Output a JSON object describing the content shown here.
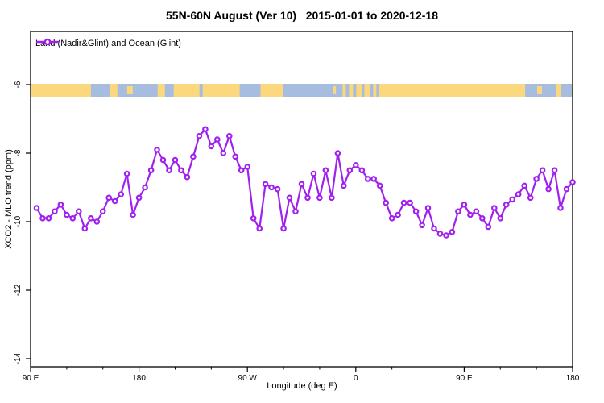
{
  "title": "55N-60N August (Ver 10)   2015-01-01 to 2020-12-18",
  "legend": {
    "label": "Land (Nadir&Glint) and Ocean (Glint)"
  },
  "axes": {
    "x": {
      "label": "Longitude (deg E)",
      "major_ticks": [
        {
          "deg": 0,
          "label": "90 E"
        },
        {
          "deg": 90,
          "label": "180"
        },
        {
          "deg": 180,
          "label": "90 W"
        },
        {
          "deg": 270,
          "label": "0"
        },
        {
          "deg": 360,
          "label": "90 E"
        },
        {
          "deg": 450,
          "label": "180"
        }
      ],
      "minor_ticks_deg": [
        30,
        60,
        120,
        150,
        210,
        240,
        300,
        330,
        390,
        420
      ]
    },
    "y": {
      "label": "XCO2 - MLO trend (ppm)",
      "ticks": [
        -6,
        -8,
        -10,
        -12,
        -14
      ],
      "range": [
        -14.2,
        -4.45
      ]
    }
  },
  "colors": {
    "series": "#A020F0",
    "marker_fill": "#ffffff",
    "land": "#FBD77D",
    "ocean": "#A6BDDF",
    "axis": "#000000",
    "text": "#000000"
  },
  "land_ocean_strip": {
    "description": "land/ocean mask band for 55N-60N plotted under y=-6",
    "ocean_segments_deg": [
      [
        50.1,
        66.1
      ],
      [
        72.1,
        105.5
      ],
      [
        111.5,
        118.8
      ],
      [
        140.2,
        142.9
      ],
      [
        173.6,
        190.9
      ],
      [
        209.6,
        259.0
      ],
      [
        261.7,
        264.4
      ],
      [
        267.7,
        270.4
      ],
      [
        275.1,
        277.1
      ],
      [
        281.8,
        284.4
      ],
      [
        287.1,
        289.1
      ],
      [
        410.6,
        436.6
      ],
      [
        440.6,
        449.3
      ]
    ],
    "land_patches_deg": [
      [
        80.1,
        84.8
      ],
      [
        251.0,
        253.5
      ],
      [
        420.6,
        424.6
      ]
    ]
  },
  "chart_data": {
    "type": "line",
    "title": "55N-60N August (Ver 10)   2015-01-01 to 2020-12-18",
    "xlabel": "Longitude (deg E)",
    "ylabel": "XCO2 - MLO trend (ppm)",
    "x_start_longitude": "90 E",
    "x_span_deg": 450,
    "ylim": [
      -14.2,
      -4.45
    ],
    "grid": false,
    "legend_position": "top-left",
    "series_name": "Land (Nadir&Glint) and Ocean (Glint)",
    "x_deg": [
      5,
      10,
      15,
      20,
      25,
      30,
      35,
      40,
      45,
      50,
      55,
      60,
      65,
      70,
      75,
      80,
      85,
      90,
      95,
      100,
      105,
      110,
      115,
      120,
      125,
      130,
      135,
      140,
      145,
      150,
      155,
      160,
      165,
      170,
      175,
      180,
      185,
      190,
      195,
      200,
      205,
      210,
      215,
      220,
      225,
      230,
      235,
      240,
      245,
      250,
      255,
      260,
      265,
      270,
      275,
      280,
      285,
      290,
      295,
      300,
      305,
      310,
      315,
      320,
      325,
      330,
      335,
      340,
      345,
      350,
      355,
      360,
      365,
      370,
      375,
      380,
      385,
      390,
      395,
      400,
      405,
      410,
      415,
      420,
      425,
      430,
      435,
      440,
      445,
      450
    ],
    "values": [
      -9.6,
      -9.9,
      -9.9,
      -9.7,
      -9.5,
      -9.8,
      -9.9,
      -9.7,
      -10.2,
      -9.9,
      -10.0,
      -9.7,
      -9.3,
      -9.4,
      -9.2,
      -8.6,
      -9.8,
      -9.3,
      -9.0,
      -8.5,
      -7.9,
      -8.2,
      -8.5,
      -8.2,
      -8.5,
      -8.7,
      -8.1,
      -7.5,
      -7.3,
      -7.8,
      -7.6,
      -8.0,
      -7.5,
      -8.1,
      -8.5,
      -8.4,
      -9.9,
      -10.2,
      -8.9,
      -9.0,
      -9.05,
      -10.2,
      -9.3,
      -9.7,
      -8.9,
      -9.3,
      -8.6,
      -9.3,
      -8.5,
      -9.3,
      -8.0,
      -8.95,
      -8.5,
      -8.35,
      -8.5,
      -8.75,
      -8.75,
      -8.95,
      -9.45,
      -9.9,
      -9.8,
      -9.45,
      -9.45,
      -9.7,
      -10.1,
      -9.6,
      -10.2,
      -10.35,
      -10.4,
      -10.3,
      -9.7,
      -9.5,
      -9.8,
      -9.7,
      -9.9,
      -10.15,
      -9.6,
      -9.9,
      -9.5,
      -9.35,
      -9.2,
      -8.95,
      -9.3,
      -8.75,
      -8.5,
      -9.05,
      -8.5,
      -9.6,
      -9.05,
      -8.85
    ]
  }
}
